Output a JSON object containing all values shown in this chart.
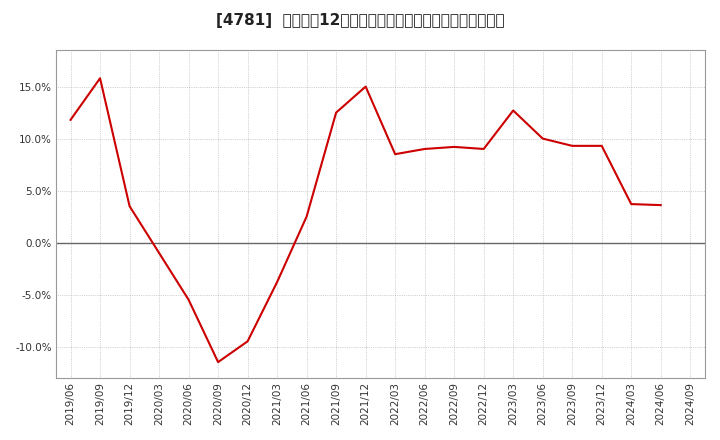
{
  "title": "[4781]  売上高の12か月移動合計の対前年同期増減率の推移",
  "line_color": "#cc0000",
  "background_color": "#ffffff",
  "plot_bg_color": "#ffffff",
  "grid_color": "#aaaaaa",
  "zero_line_color": "#666666",
  "x_labels": [
    "2019/06",
    "2019/09",
    "2019/12",
    "2020/03",
    "2020/06",
    "2020/09",
    "2020/12",
    "2021/03",
    "2021/06",
    "2021/09",
    "2021/12",
    "2022/03",
    "2022/06",
    "2022/09",
    "2022/12",
    "2023/03",
    "2023/06",
    "2023/09",
    "2023/12",
    "2024/03",
    "2024/06",
    "2024/09"
  ],
  "y_values": [
    0.118,
    0.158,
    0.035,
    -0.01,
    -0.055,
    -0.115,
    -0.095,
    -0.038,
    0.025,
    0.125,
    0.15,
    0.085,
    0.09,
    0.092,
    0.09,
    0.127,
    0.1,
    0.093,
    0.093,
    0.037,
    0.036,
    null
  ],
  "ylim": [
    -0.13,
    0.185
  ],
  "yticks": [
    -0.1,
    -0.05,
    0.0,
    0.05,
    0.1,
    0.15
  ],
  "ytick_labels": [
    "-10.0%",
    "-5.0%",
    "0.0%",
    "5.0%",
    "10.0%",
    "15.0%"
  ],
  "title_fontsize": 11,
  "tick_fontsize": 7.5
}
